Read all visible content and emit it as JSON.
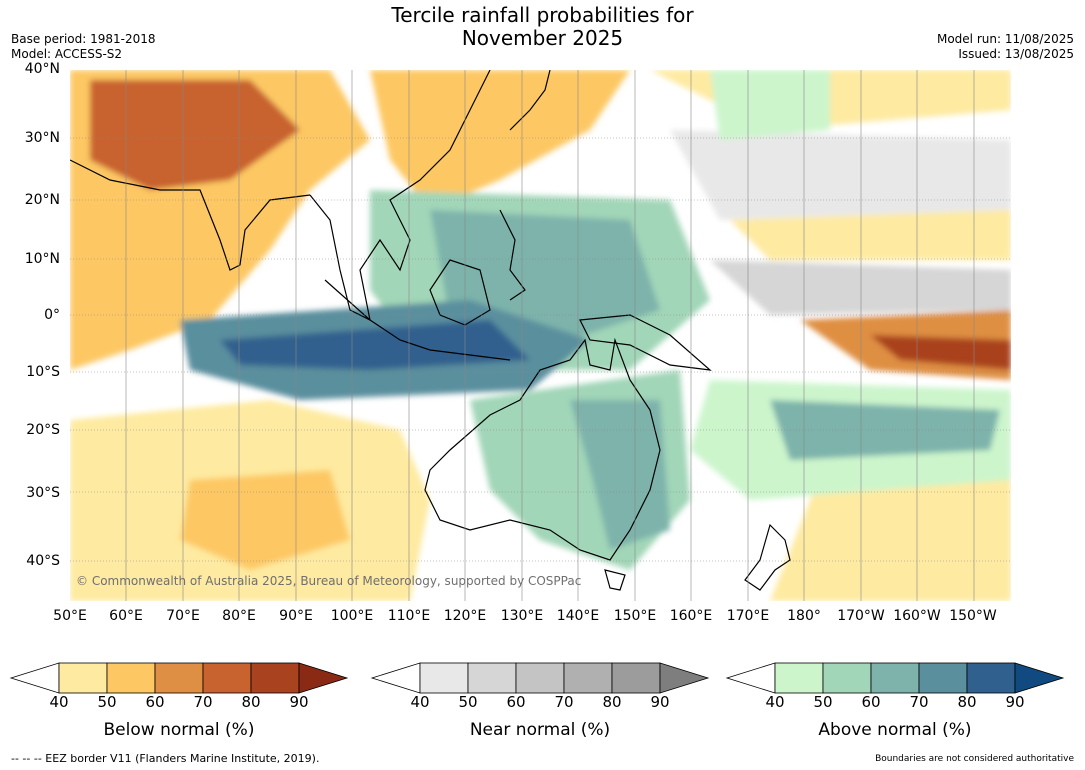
{
  "title": "Tercile rainfall probabilities for\nNovember 2025",
  "meta_left": "Base period: 1981-2018\nModel: ACCESS-S2",
  "meta_right": "Model run: 11/08/2025\nIssued: 13/08/2025",
  "lat_labels": [
    "40°N",
    "30°N",
    "20°N",
    "10°N",
    "0°",
    "10°S",
    "20°S",
    "30°S",
    "40°S"
  ],
  "lon_labels": [
    "50°E",
    "60°E",
    "70°E",
    "80°E",
    "90°E",
    "100°E",
    "110°E",
    "120°E",
    "130°E",
    "140°E",
    "150°E",
    "160°E",
    "170°E",
    "180°",
    "170°W",
    "160°W",
    "150°W"
  ],
  "copyright": "© Commonwealth of Australia 2025, Bureau of Meteorology, supported by COSPPac",
  "legends": [
    {
      "title": "Below normal (%)",
      "ticks": [
        "40",
        "50",
        "60",
        "70",
        "80",
        "90"
      ],
      "colors": [
        "#ffffff",
        "#feeaa0",
        "#fdc863",
        "#df8f43",
        "#c8622f",
        "#a9431f",
        "#8b2a14"
      ]
    },
    {
      "title": "Near normal (%)",
      "ticks": [
        "40",
        "50",
        "60",
        "70",
        "80",
        "90"
      ],
      "colors": [
        "#ffffff",
        "#e8e8e8",
        "#d6d6d6",
        "#c4c4c4",
        "#b0b0b0",
        "#9c9c9c",
        "#7e7e7e"
      ]
    },
    {
      "title": "Above normal (%)",
      "ticks": [
        "40",
        "50",
        "60",
        "70",
        "80",
        "90"
      ],
      "colors": [
        "#ffffff",
        "#ccf5cc",
        "#a2d6b8",
        "#7db3ab",
        "#5a8f9e",
        "#30618e",
        "#104a80"
      ]
    }
  ],
  "footnote_left": "--  --  -- EEZ border V11 (Flanders Marine Institute, 2019).",
  "footnote_right": "Boundaries are not considered authoritative"
}
